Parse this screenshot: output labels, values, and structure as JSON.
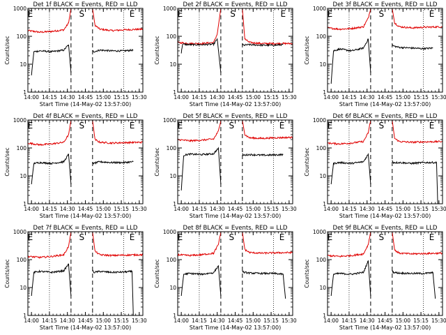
{
  "chart_data": {
    "type": "line",
    "layout": {
      "rows": 3,
      "cols": 3
    },
    "xlabel": "Start Time (14-May-02 13:57:00)",
    "ylabel": "Counts/sec",
    "x_range_min": [
      0,
      96
    ],
    "x_ticks": [
      {
        "t": 3,
        "label": "14:00"
      },
      {
        "t": 18,
        "label": "14:15"
      },
      {
        "t": 33,
        "label": "14:30"
      },
      {
        "t": 48,
        "label": "14:45"
      },
      {
        "t": 63,
        "label": "15:00"
      },
      {
        "t": 78,
        "label": "15:15"
      },
      {
        "t": 93,
        "label": "15:30"
      }
    ],
    "y_scale": "log",
    "ylim": [
      1,
      1000
    ],
    "y_ticks": [
      {
        "v": 1,
        "label": "1"
      },
      {
        "v": 10,
        "label": "10"
      },
      {
        "v": 100,
        "label": "100"
      },
      {
        "v": 1000,
        "label": "1000"
      }
    ],
    "series_colors": {
      "events": "#000000",
      "lld": "#e00000"
    },
    "panels": [
      {
        "title": "Det 1f BLACK = Events, RED = LLD",
        "markers": [
          {
            "t": 2,
            "label": "E"
          },
          {
            "t": 45,
            "label": "S"
          },
          {
            "t": 87,
            "label": "E"
          }
        ],
        "dotted": [
          18,
          80
        ],
        "dashed": [
          36,
          54
        ],
        "red": [
          {
            "t": [
              0,
              10,
              20,
              30,
              34,
              36
            ],
            "y": [
              160,
              140,
              150,
              170,
              300,
              1000
            ]
          },
          {
            "t": [
              54,
              56,
              60,
              70,
              80,
              96
            ],
            "y": [
              1000,
              250,
              180,
              160,
              170,
              180
            ]
          }
        ],
        "black": [
          {
            "t": [
              3,
              5,
              10,
              20,
              30,
              34,
              36
            ],
            "y": [
              4,
              28,
              30,
              28,
              32,
              50,
              5
            ]
          },
          {
            "t": [
              54,
              55,
              60,
              70,
              80,
              88
            ],
            "y": [
              30,
              28,
              32,
              30,
              30,
              32
            ]
          }
        ]
      },
      {
        "title": "Det 2f BLACK = Events, RED = LLD",
        "markers": [
          {
            "t": 2,
            "label": "E"
          },
          {
            "t": 46,
            "label": "S"
          },
          {
            "t": 88,
            "label": "E"
          }
        ],
        "dotted": [
          18,
          80
        ],
        "dashed": [
          36,
          54
        ],
        "red": [
          {
            "t": [
              0,
              10,
              20,
              30,
              33,
              36
            ],
            "y": [
              60,
              55,
              55,
              60,
              120,
              1000
            ]
          },
          {
            "t": [
              54,
              56,
              60,
              70,
              80,
              96
            ],
            "y": [
              1000,
              80,
              60,
              55,
              55,
              55
            ]
          }
        ],
        "black": [
          {
            "t": [
              3,
              4,
              10,
              20,
              30,
              33,
              36
            ],
            "y": [
              25,
              52,
              50,
              50,
              52,
              80,
              5
            ]
          },
          {
            "t": [
              54,
              55,
              60,
              70,
              80,
              88
            ],
            "y": [
              50,
              48,
              50,
              48,
              48,
              50
            ]
          }
        ]
      },
      {
        "title": "Det 3f BLACK = Events, RED = LLD",
        "markers": [
          {
            "t": 2,
            "label": "E"
          },
          {
            "t": 45,
            "label": "S"
          },
          {
            "t": 87,
            "label": "E"
          }
        ],
        "dotted": [
          18,
          80
        ],
        "dashed": [
          36,
          54
        ],
        "red": [
          {
            "t": [
              0,
              10,
              20,
              30,
              34,
              36
            ],
            "y": [
              200,
              180,
              190,
              220,
              450,
              1000
            ]
          },
          {
            "t": [
              54,
              56,
              60,
              70,
              80,
              96
            ],
            "y": [
              1000,
              300,
              220,
              200,
              210,
              220
            ]
          }
        ],
        "black": [
          {
            "t": [
              3,
              5,
              10,
              20,
              30,
              34,
              36
            ],
            "y": [
              2,
              30,
              35,
              30,
              38,
              80,
              5
            ]
          },
          {
            "t": [
              54,
              55,
              60,
              70,
              80,
              88
            ],
            "y": [
              50,
              45,
              40,
              38,
              36,
              38
            ]
          }
        ]
      },
      {
        "title": "Det 4f BLACK = Events, RED = LLD",
        "markers": [
          {
            "t": 2,
            "label": "E"
          },
          {
            "t": 45,
            "label": "S"
          },
          {
            "t": 87,
            "label": "E"
          }
        ],
        "dotted": [
          18,
          80
        ],
        "dashed": [
          36,
          54
        ],
        "red": [
          {
            "t": [
              0,
              10,
              20,
              30,
              34,
              36
            ],
            "y": [
              150,
              130,
              140,
              160,
              300,
              1000
            ]
          },
          {
            "t": [
              54,
              56,
              60,
              70,
              80,
              96
            ],
            "y": [
              1000,
              200,
              160,
              150,
              155,
              160
            ]
          }
        ],
        "black": [
          {
            "t": [
              3,
              5,
              10,
              20,
              30,
              34,
              36
            ],
            "y": [
              5,
              28,
              30,
              28,
              32,
              60,
              5
            ]
          },
          {
            "t": [
              54,
              55,
              60,
              70,
              80,
              88
            ],
            "y": [
              30,
              28,
              32,
              30,
              30,
              32
            ]
          }
        ]
      },
      {
        "title": "Det 5f BLACK = Events, RED = LLD",
        "markers": [
          {
            "t": 2,
            "label": "E"
          },
          {
            "t": 45,
            "label": "S"
          },
          {
            "t": 87,
            "label": "E"
          }
        ],
        "dotted": [
          18,
          80
        ],
        "dashed": [
          36,
          54
        ],
        "red": [
          {
            "t": [
              0,
              10,
              20,
              30,
              34,
              36
            ],
            "y": [
              200,
              180,
              190,
              210,
              400,
              1000
            ]
          },
          {
            "t": [
              54,
              56,
              60,
              70,
              80,
              96
            ],
            "y": [
              1000,
              300,
              230,
              220,
              230,
              240
            ]
          }
        ],
        "black": [
          {
            "t": [
              3,
              5,
              10,
              20,
              30,
              34,
              36
            ],
            "y": [
              3,
              55,
              60,
              58,
              62,
              100,
              5
            ]
          },
          {
            "t": [
              54,
              55,
              60,
              70,
              80,
              88
            ],
            "y": [
              60,
              55,
              58,
              55,
              56,
              58
            ]
          }
        ]
      },
      {
        "title": "Det 6f BLACK = Events, RED = LLD",
        "markers": [
          {
            "t": 2,
            "label": "E"
          },
          {
            "t": 45,
            "label": "S"
          },
          {
            "t": 87,
            "label": "E"
          }
        ],
        "dotted": [
          18,
          80
        ],
        "dashed": [
          36,
          54
        ],
        "red": [
          {
            "t": [
              0,
              10,
              20,
              30,
              34,
              36
            ],
            "y": [
              150,
              140,
              150,
              170,
              350,
              1000
            ]
          },
          {
            "t": [
              54,
              56,
              60,
              70,
              80,
              96
            ],
            "y": [
              1000,
              220,
              170,
              160,
              165,
              170
            ]
          }
        ],
        "black": [
          {
            "t": [
              3,
              5,
              10,
              20,
              30,
              34,
              36
            ],
            "y": [
              5,
              28,
              30,
              28,
              32,
              60,
              5
            ]
          },
          {
            "t": [
              54,
              55,
              60,
              70,
              80,
              91,
              92
            ],
            "y": [
              35,
              30,
              30,
              28,
              30,
              30,
              1
            ]
          }
        ]
      },
      {
        "title": "Det 7f BLACK = Events, RED = LLD",
        "markers": [
          {
            "t": 2,
            "label": "E"
          },
          {
            "t": 45,
            "label": "S"
          },
          {
            "t": 87,
            "label": "E"
          }
        ],
        "dotted": [
          18,
          80
        ],
        "dashed": [
          36,
          54
        ],
        "red": [
          {
            "t": [
              0,
              10,
              20,
              30,
              34,
              36
            ],
            "y": [
              130,
              120,
              130,
              150,
              300,
              1000
            ]
          },
          {
            "t": [
              54,
              56,
              60,
              70,
              80,
              96
            ],
            "y": [
              1000,
              200,
              150,
              140,
              145,
              150
            ]
          }
        ],
        "black": [
          {
            "t": [
              3,
              5,
              10,
              20,
              30,
              34,
              36
            ],
            "y": [
              5,
              35,
              38,
              35,
              40,
              70,
              5
            ]
          },
          {
            "t": [
              54,
              55,
              60,
              70,
              80,
              87,
              88
            ],
            "y": [
              40,
              35,
              38,
              35,
              36,
              38,
              1
            ]
          }
        ]
      },
      {
        "title": "Det 8f BLACK = Events, RED = LLD",
        "markers": [
          {
            "t": 2,
            "label": "E"
          },
          {
            "t": 45,
            "label": "S"
          },
          {
            "t": 87,
            "label": "E"
          }
        ],
        "dotted": [
          18,
          80
        ],
        "dashed": [
          36,
          54
        ],
        "red": [
          {
            "t": [
              0,
              10,
              20,
              30,
              34,
              36
            ],
            "y": [
              150,
              140,
              150,
              170,
              350,
              1000
            ]
          },
          {
            "t": [
              54,
              56,
              60,
              70,
              80,
              96
            ],
            "y": [
              1000,
              230,
              180,
              170,
              175,
              180
            ]
          }
        ],
        "black": [
          {
            "t": [
              3,
              5,
              10,
              20,
              30,
              34,
              36
            ],
            "y": [
              5,
              30,
              32,
              30,
              34,
              60,
              5
            ]
          },
          {
            "t": [
              54,
              55,
              60,
              70,
              80,
              88,
              90
            ],
            "y": [
              40,
              35,
              33,
              32,
              32,
              30,
              4
            ]
          }
        ]
      },
      {
        "title": "Det 9f BLACK = Events, RED = LLD",
        "markers": [
          {
            "t": 2,
            "label": "E"
          },
          {
            "t": 45,
            "label": "S"
          },
          {
            "t": 87,
            "label": "E"
          }
        ],
        "dotted": [
          18,
          80
        ],
        "dashed": [
          36,
          54
        ],
        "red": [
          {
            "t": [
              0,
              10,
              20,
              30,
              34,
              36
            ],
            "y": [
              140,
              130,
              140,
              160,
              350,
              1000
            ]
          },
          {
            "t": [
              54,
              56,
              60,
              70,
              80,
              96
            ],
            "y": [
              1000,
              220,
              170,
              160,
              165,
              170
            ]
          }
        ],
        "black": [
          {
            "t": [
              3,
              5,
              10,
              20,
              30,
              34,
              36
            ],
            "y": [
              5,
              30,
              32,
              30,
              35,
              90,
              5
            ]
          },
          {
            "t": [
              54,
              55,
              60,
              70,
              80,
              88,
              90
            ],
            "y": [
              40,
              35,
              33,
              32,
              32,
              34,
              4
            ]
          }
        ]
      }
    ]
  }
}
